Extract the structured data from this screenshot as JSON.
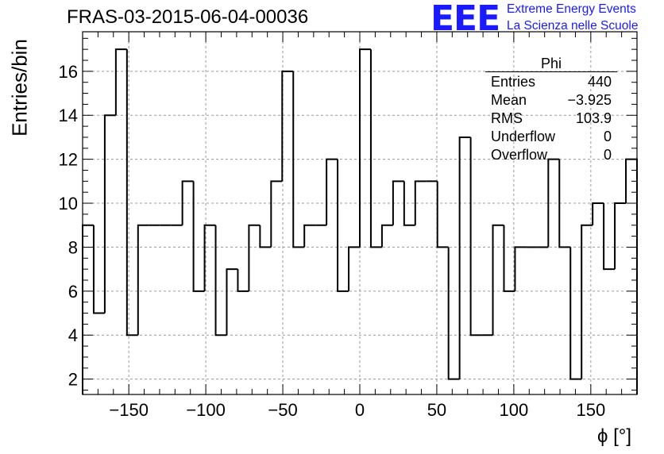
{
  "chart_data": {
    "type": "histogram",
    "title": "FRAS-03-2015-06-04-00036",
    "xlabel": "ϕ [°]",
    "ylabel": "Entries/bin",
    "xlim": [
      -180,
      180
    ],
    "ylim": [
      1.3,
      17.8
    ],
    "grid": true,
    "bin_width": 7.2,
    "x_ticks": [
      -150,
      -100,
      -50,
      0,
      50,
      100,
      150
    ],
    "x_tick_labels": [
      "−150",
      "−100",
      "−50",
      "0",
      "50",
      "100",
      "150"
    ],
    "y_ticks": [
      2,
      4,
      6,
      8,
      10,
      12,
      14,
      16
    ],
    "y_tick_labels": [
      "2",
      "4",
      "6",
      "8",
      "10",
      "12",
      "14",
      "16"
    ],
    "bin_edges_start": -180,
    "values": [
      9,
      5,
      14,
      17,
      4,
      9,
      9,
      9,
      9,
      11,
      6,
      9,
      4,
      7,
      6,
      9,
      8,
      11,
      16,
      8,
      9,
      9,
      12,
      6,
      8,
      17,
      8,
      9,
      11,
      9,
      11,
      11,
      8,
      2,
      13,
      4,
      4,
      9,
      6,
      8,
      8,
      8,
      12,
      8,
      2,
      9,
      10,
      7,
      10,
      12
    ]
  },
  "stats": {
    "title": "Phi",
    "rows": [
      {
        "label": "Entries",
        "value": "440"
      },
      {
        "label": "Mean",
        "value": "−3.925"
      },
      {
        "label": "RMS",
        "value": "103.9"
      },
      {
        "label": "Underflow",
        "value": "0"
      },
      {
        "label": "Overflow",
        "value": "0"
      }
    ]
  },
  "logo": {
    "mark": "EEE",
    "line1": "Extreme Energy Events",
    "line2": "La Scienza nelle Scuole"
  }
}
